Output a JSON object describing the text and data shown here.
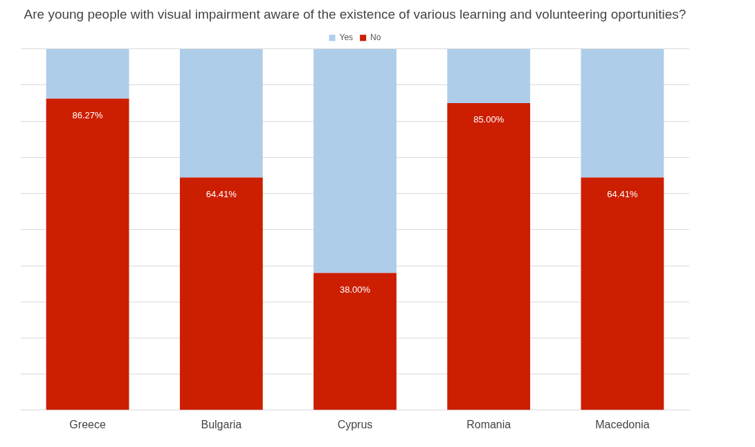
{
  "chart_data": {
    "type": "bar",
    "stacked": true,
    "title": "Are young people with visual impairment aware of the existence of various learning and volunteering oportunities?",
    "categories": [
      "Greece",
      "Bulgaria",
      "Cyprus",
      "Romania",
      "Macedonia"
    ],
    "series": [
      {
        "name": "No",
        "color": "#cc1e00",
        "values": [
          86.27,
          64.41,
          38.0,
          85.0,
          64.41
        ],
        "value_labels": [
          "86.27%",
          "64.41%",
          "38.00%",
          "85.00%",
          "64.41%"
        ]
      },
      {
        "name": "Yes",
        "color": "#aecde9",
        "values": [
          13.73,
          35.59,
          62.0,
          15.0,
          35.59
        ]
      }
    ],
    "ylim": [
      0,
      100
    ],
    "yticks": [
      {
        "value": 0,
        "label": null
      },
      {
        "value": 10,
        "label": null
      },
      {
        "value": 20,
        "label": null
      },
      {
        "value": 30,
        "label": null
      },
      {
        "value": 40,
        "label": null
      },
      {
        "value": 50,
        "label": null
      },
      {
        "value": 60,
        "label": null
      },
      {
        "value": 70,
        "label": null
      },
      {
        "value": 80,
        "label": null
      },
      {
        "value": 90,
        "label": null
      },
      {
        "value": 100,
        "label": null
      }
    ],
    "tick_labels": "x",
    "grid": "y",
    "legend": "top"
  }
}
